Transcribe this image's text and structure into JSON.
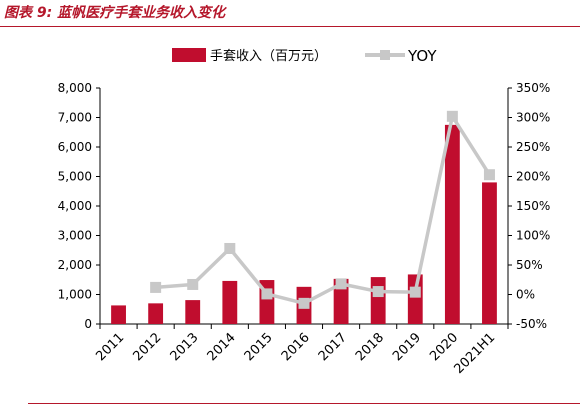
{
  "figure_title": "图表 9:  蓝帆医疗手套业务收入变化",
  "colors": {
    "bar": "#c00d2e",
    "line": "#c8c8c8",
    "title": "#b5172b",
    "axis": "#000000"
  },
  "chart_data": {
    "type": "bar+line",
    "categories": [
      "2011",
      "2012",
      "2013",
      "2014",
      "2015",
      "2016",
      "2017",
      "2018",
      "2019",
      "2020",
      "2021H1"
    ],
    "series": [
      {
        "name": "手套收入（百万元）",
        "type": "bar",
        "axis": "left",
        "values": [
          630,
          700,
          810,
          1460,
          1490,
          1260,
          1530,
          1590,
          1680,
          6750,
          4800
        ]
      },
      {
        "name": "YOY",
        "type": "line",
        "axis": "right",
        "values": [
          null,
          12,
          17,
          78,
          1,
          -15,
          18,
          5,
          4,
          302,
          203
        ]
      }
    ],
    "y_left": {
      "min": 0,
      "max": 8000,
      "step": 1000,
      "tick_labels": [
        "0",
        "1,000",
        "2,000",
        "3,000",
        "4,000",
        "5,000",
        "6,000",
        "7,000",
        "8,000"
      ]
    },
    "y_right": {
      "min": -50,
      "max": 350,
      "step": 50,
      "tick_labels": [
        "-50%",
        "0%",
        "50%",
        "100%",
        "150%",
        "200%",
        "250%",
        "300%",
        "350%"
      ]
    },
    "legend_position": "top-center",
    "grid": false
  }
}
